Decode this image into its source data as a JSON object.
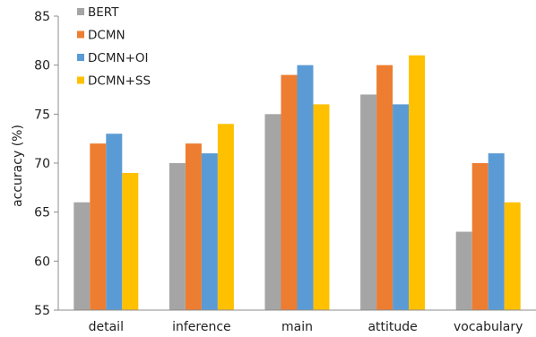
{
  "chart_data": {
    "type": "bar",
    "title": "",
    "xlabel": "",
    "ylabel": "accuracy (%)",
    "ylim": [
      55,
      85
    ],
    "yticks": [
      55,
      60,
      65,
      70,
      75,
      80,
      85
    ],
    "grid": false,
    "legend_position": "top-left",
    "categories": [
      "detail",
      "inference",
      "main",
      "attitude",
      "vocabulary"
    ],
    "series": [
      {
        "name": "BERT",
        "color": "#a5a5a5",
        "values": [
          66,
          70,
          75,
          77,
          63
        ]
      },
      {
        "name": "DCMN",
        "color": "#ed7d31",
        "values": [
          72,
          72,
          79,
          80,
          70
        ]
      },
      {
        "name": "DCMN+OI",
        "color": "#5b9bd5",
        "values": [
          73,
          71,
          80,
          76,
          71
        ]
      },
      {
        "name": "DCMN+SS",
        "color": "#ffc000",
        "values": [
          69,
          74,
          76,
          81,
          66
        ]
      }
    ]
  }
}
